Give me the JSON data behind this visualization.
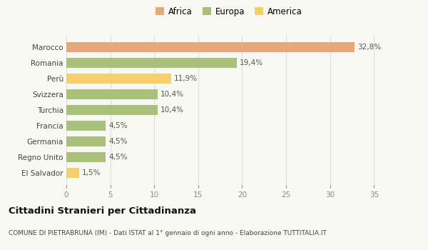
{
  "categories": [
    "El Salvador",
    "Regno Unito",
    "Germania",
    "Francia",
    "Turchia",
    "Svizzera",
    "Perù",
    "Romania",
    "Marocco"
  ],
  "values": [
    1.5,
    4.5,
    4.5,
    4.5,
    10.4,
    10.4,
    11.9,
    19.4,
    32.8
  ],
  "colors": [
    "#f5cf6b",
    "#a8c07a",
    "#a8c07a",
    "#a8c07a",
    "#a8c07a",
    "#a8c07a",
    "#f5cf6b",
    "#a8c07a",
    "#e8a87c"
  ],
  "labels": [
    "1,5%",
    "4,5%",
    "4,5%",
    "4,5%",
    "10,4%",
    "10,4%",
    "11,9%",
    "19,4%",
    "32,8%"
  ],
  "legend": [
    {
      "label": "Africa",
      "color": "#e8a87c"
    },
    {
      "label": "Europa",
      "color": "#a8c07a"
    },
    {
      "label": "America",
      "color": "#f5cf6b"
    }
  ],
  "xlim": [
    0,
    37
  ],
  "xticks": [
    0,
    5,
    10,
    15,
    20,
    25,
    30,
    35
  ],
  "title": "Cittadini Stranieri per Cittadinanza",
  "subtitle": "COMUNE DI PIETRABRUNA (IM) - Dati ISTAT al 1° gennaio di ogni anno - Elaborazione TUTTITALIA.IT",
  "bg_color": "#f9f9f4",
  "grid_color": "#e0e0d0"
}
